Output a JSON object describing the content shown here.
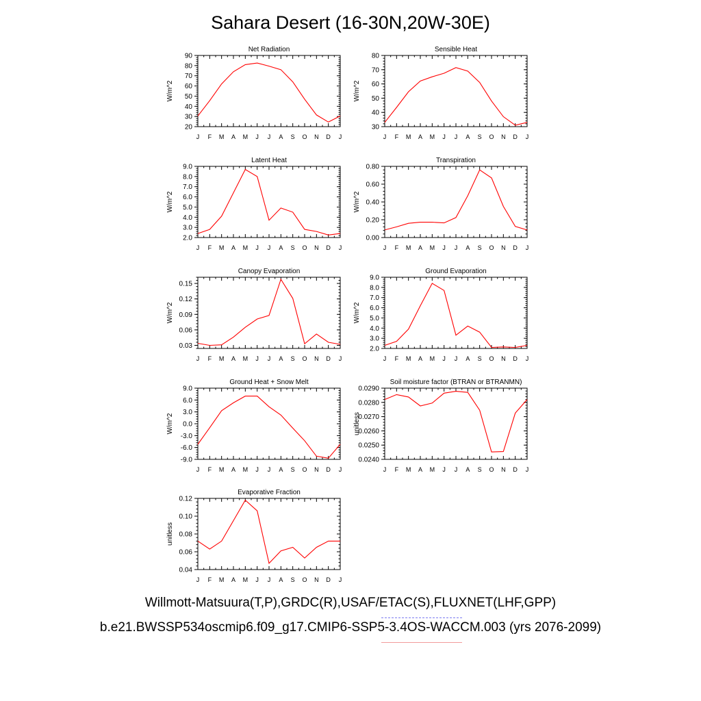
{
  "title": "Sahara Desert (16-30N,20W-30E)",
  "legend": {
    "observations": "Willmott-Matsuura(T,P),GRDC(R),USAF/ETAC(S),FLUXNET(LHF,GPP)",
    "model": "b.e21.BWSSP534oscmip6.f09_g17.CMIP6-SSP5-3.4OS-WACCM.003 (yrs 2076-2099)",
    "obs_color": "#7b7bf0",
    "model_color": "#f29a9a"
  },
  "line_color": "#ff0000",
  "chart_data": [
    {
      "type": "line",
      "title": "Net Radiation",
      "ylabel": "W/m^2",
      "x": [
        "J",
        "F",
        "M",
        "A",
        "M",
        "J",
        "J",
        "A",
        "S",
        "O",
        "N",
        "D",
        "J"
      ],
      "ylim": [
        20,
        90
      ],
      "yticks": [
        20,
        30,
        40,
        50,
        60,
        70,
        80,
        90
      ],
      "ytick_labels": [
        "20",
        "30",
        "40",
        "50",
        "60",
        "70",
        "80",
        "90"
      ],
      "series": [
        {
          "values": [
            30.5,
            45.5,
            62,
            74,
            81,
            82.5,
            79.5,
            76,
            64,
            47,
            31.5,
            24.5,
            30.5
          ]
        }
      ]
    },
    {
      "type": "line",
      "title": "Sensible Heat",
      "ylabel": "W/m^2",
      "x": [
        "J",
        "F",
        "M",
        "A",
        "M",
        "J",
        "J",
        "A",
        "S",
        "O",
        "N",
        "D",
        "J"
      ],
      "ylim": [
        30,
        80
      ],
      "yticks": [
        30,
        40,
        50,
        60,
        70,
        80
      ],
      "ytick_labels": [
        "30",
        "40",
        "50",
        "60",
        "70",
        "80"
      ],
      "series": [
        {
          "values": [
            33,
            43.5,
            54.5,
            62,
            65,
            67.5,
            71.5,
            69,
            61,
            48,
            37,
            31,
            33
          ]
        }
      ]
    },
    {
      "type": "line",
      "title": "Latent Heat",
      "ylabel": "W/m^2",
      "x": [
        "J",
        "F",
        "M",
        "A",
        "M",
        "J",
        "J",
        "A",
        "S",
        "O",
        "N",
        "D",
        "J"
      ],
      "ylim": [
        2.0,
        9.0
      ],
      "yticks": [
        2,
        3,
        4,
        5,
        6,
        7,
        8,
        9
      ],
      "ytick_labels": [
        "2.0",
        "3.0",
        "4.0",
        "5.0",
        "6.0",
        "7.0",
        "8.0",
        "9.0"
      ],
      "series": [
        {
          "values": [
            2.4,
            2.8,
            4.1,
            6.4,
            8.7,
            8.0,
            3.7,
            4.9,
            4.5,
            2.8,
            2.6,
            2.25,
            2.4
          ]
        }
      ]
    },
    {
      "type": "line",
      "title": "Transpiration",
      "ylabel": "W/m^2",
      "x": [
        "J",
        "F",
        "M",
        "A",
        "M",
        "J",
        "J",
        "A",
        "S",
        "O",
        "N",
        "D",
        "J"
      ],
      "ylim": [
        0.0,
        0.8
      ],
      "yticks": [
        0,
        0.2,
        0.4,
        0.6,
        0.8
      ],
      "ytick_labels": [
        "0.00",
        "0.20",
        "0.40",
        "0.60",
        "0.80"
      ],
      "series": [
        {
          "values": [
            0.085,
            0.12,
            0.16,
            0.172,
            0.172,
            0.165,
            0.225,
            0.47,
            0.76,
            0.67,
            0.35,
            0.125,
            0.085
          ]
        }
      ]
    },
    {
      "type": "line",
      "title": "Canopy Evaporation",
      "ylabel": "W/m^2",
      "x": [
        "J",
        "F",
        "M",
        "A",
        "M",
        "J",
        "J",
        "A",
        "S",
        "O",
        "N",
        "D",
        "J"
      ],
      "ylim": [
        0.024,
        0.162
      ],
      "yticks": [
        0.03,
        0.06,
        0.09,
        0.12,
        0.15
      ],
      "ytick_labels": [
        "0.03",
        "0.06",
        "0.09",
        "0.12",
        "0.15"
      ],
      "series": [
        {
          "values": [
            0.034,
            0.03,
            0.031,
            0.046,
            0.065,
            0.081,
            0.088,
            0.158,
            0.121,
            0.033,
            0.052,
            0.036,
            0.032
          ]
        }
      ]
    },
    {
      "type": "line",
      "title": "Ground Evaporation",
      "ylabel": "W/m^2",
      "x": [
        "J",
        "F",
        "M",
        "A",
        "M",
        "J",
        "J",
        "A",
        "S",
        "O",
        "N",
        "D",
        "J"
      ],
      "ylim": [
        2.0,
        9.0
      ],
      "yticks": [
        2,
        3,
        4,
        5,
        6,
        7,
        8,
        9
      ],
      "ytick_labels": [
        "2.0",
        "3.0",
        "4.0",
        "5.0",
        "6.0",
        "7.0",
        "8.0",
        "9.0"
      ],
      "series": [
        {
          "values": [
            2.3,
            2.7,
            3.9,
            6.2,
            8.4,
            7.7,
            3.3,
            4.2,
            3.6,
            2.1,
            2.15,
            2.1,
            2.3
          ]
        }
      ]
    },
    {
      "type": "line",
      "title": "Ground Heat + Snow Melt",
      "ylabel": "W/m^2",
      "x": [
        "J",
        "F",
        "M",
        "A",
        "M",
        "J",
        "J",
        "A",
        "S",
        "O",
        "N",
        "D",
        "J"
      ],
      "ylim": [
        -9.0,
        9.0
      ],
      "yticks": [
        -9,
        -6,
        -3,
        0,
        3,
        6,
        9
      ],
      "ytick_labels": [
        "-9.0",
        "-6.0",
        "-3.0",
        "0.0",
        "3.0",
        "6.0",
        "9.0"
      ],
      "series": [
        {
          "values": [
            -5.2,
            -1.0,
            3.3,
            5.3,
            7.0,
            7.0,
            4.3,
            2.2,
            -1.1,
            -4.3,
            -8.2,
            -8.7,
            -5.2
          ]
        }
      ]
    },
    {
      "type": "line",
      "title": "Soil moisture factor (BTRAN or BTRANMN)",
      "ylabel": "unitless",
      "x": [
        "J",
        "F",
        "M",
        "A",
        "M",
        "J",
        "J",
        "A",
        "S",
        "O",
        "N",
        "D",
        "J"
      ],
      "ylim": [
        0.024,
        0.029
      ],
      "yticks": [
        0.024,
        0.025,
        0.026,
        0.027,
        0.028,
        0.029
      ],
      "ytick_labels": [
        "0.0240",
        "0.0250",
        "0.0260",
        "0.0270",
        "0.0280",
        "0.0290"
      ],
      "series": [
        {
          "values": [
            0.0282,
            0.02855,
            0.02838,
            0.02775,
            0.02795,
            0.02865,
            0.02878,
            0.0287,
            0.02745,
            0.02452,
            0.02455,
            0.02725,
            0.0282
          ]
        }
      ]
    },
    {
      "type": "line",
      "title": "Evaporative Fraction",
      "ylabel": "unitless",
      "x": [
        "J",
        "F",
        "M",
        "A",
        "M",
        "J",
        "J",
        "A",
        "S",
        "O",
        "N",
        "D",
        "J"
      ],
      "ylim": [
        0.04,
        0.12
      ],
      "yticks": [
        0.04,
        0.06,
        0.08,
        0.1,
        0.12
      ],
      "ytick_labels": [
        "0.04",
        "0.06",
        "0.08",
        "0.10",
        "0.12"
      ],
      "series": [
        {
          "values": [
            0.072,
            0.063,
            0.072,
            0.095,
            0.118,
            0.106,
            0.047,
            0.061,
            0.065,
            0.053,
            0.065,
            0.072,
            0.072
          ]
        }
      ]
    }
  ]
}
